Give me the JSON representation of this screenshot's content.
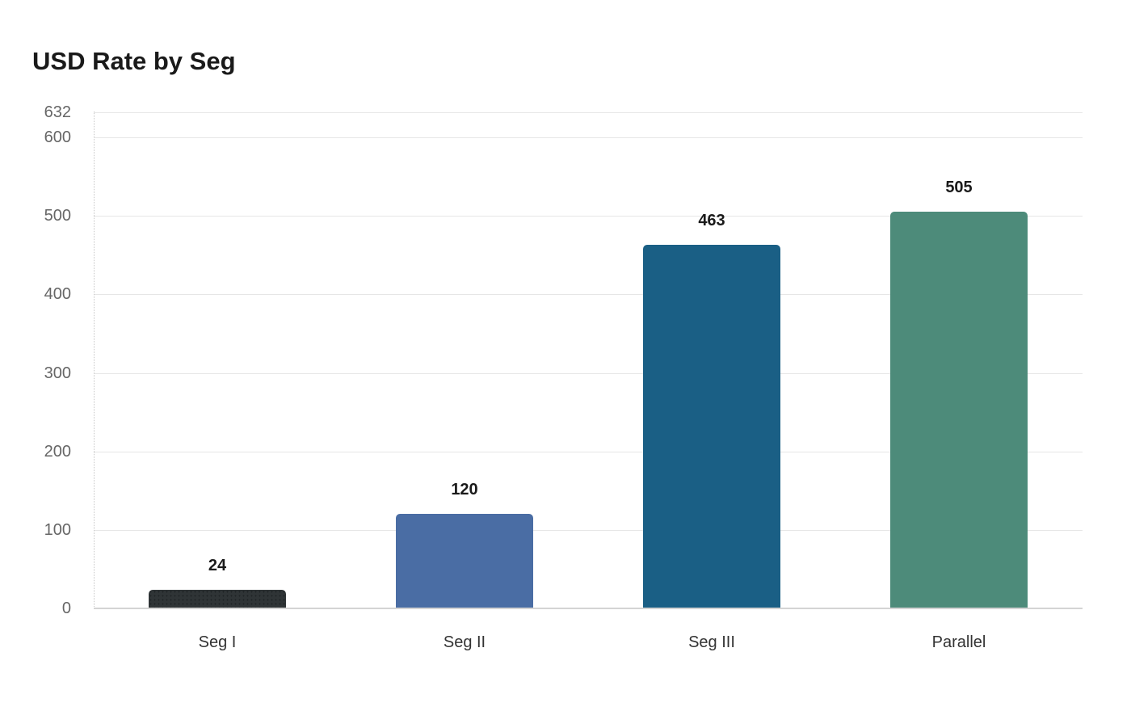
{
  "chart_data": {
    "type": "bar",
    "title": "USD Rate by Seg",
    "xlabel": "",
    "ylabel": "",
    "categories": [
      "Seg I",
      "Seg II",
      "Seg III",
      "Parallel"
    ],
    "values": [
      24,
      120,
      463,
      505
    ],
    "colors": [
      "#2f3436",
      "#4a6da4",
      "#1a5f85",
      "#4d8b7a"
    ],
    "ylim": [
      0,
      632
    ],
    "yticks": [
      0,
      100,
      200,
      300,
      400,
      500,
      600,
      632
    ],
    "grid": true,
    "legend": null,
    "data_labels": true
  }
}
